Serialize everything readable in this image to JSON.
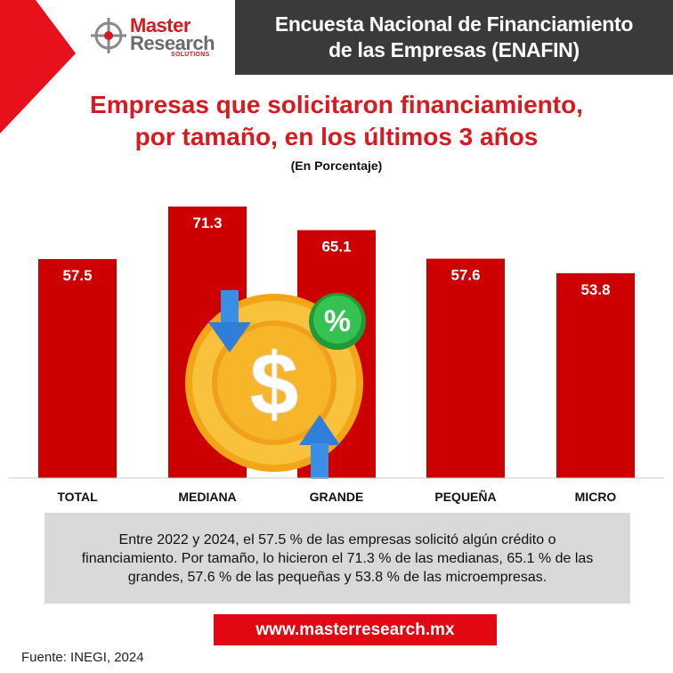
{
  "logo": {
    "line1": "Master",
    "line2": "Research",
    "line3": "SOLUTIONS"
  },
  "header": {
    "line1": "Encuesta Nacional de Financiamiento",
    "line2": "de las Empresas (ENAFIN)"
  },
  "title_line1": "Empresas que solicitaron financiamiento,",
  "title_line2": "por tamaño, en los últimos 3 años",
  "subtitle": "(En Porcentaje)",
  "chart_data": {
    "type": "bar",
    "categories": [
      "TOTAL",
      "MEDIANA",
      "GRANDE",
      "PEQUEÑA",
      "MICRO"
    ],
    "values": [
      57.5,
      71.3,
      65.1,
      57.6,
      53.8
    ],
    "value_labels": [
      "57.5",
      "71.3",
      "65.1",
      "57.6",
      "53.8"
    ],
    "title": "Empresas que solicitaron financiamiento, por tamaño, en los últimos 3 años",
    "ylabel": "",
    "xlabel": "",
    "bar_color": "#cc0000",
    "grid": false,
    "ylim": [
      0,
      71.3
    ]
  },
  "coin": {
    "badge_symbol": "%",
    "coin_symbol": "$"
  },
  "summary": "Entre 2022 y 2024, el 57.5 % de las empresas solicitó algún crédito o financiamiento. Por tamaño, lo hicieron el 71.3 % de las medianas, 65.1 % de las grandes, 57.6 % de las pequeñas y 53.8 % de las microempresas.",
  "url": "www.masterresearch.mx",
  "source": "Fuente: INEGI, 2024",
  "colors": {
    "accent_red": "#d81920",
    "header_bg": "#3a3a3a",
    "summary_bg": "#d9d9d9",
    "url_bg": "#e30613"
  }
}
